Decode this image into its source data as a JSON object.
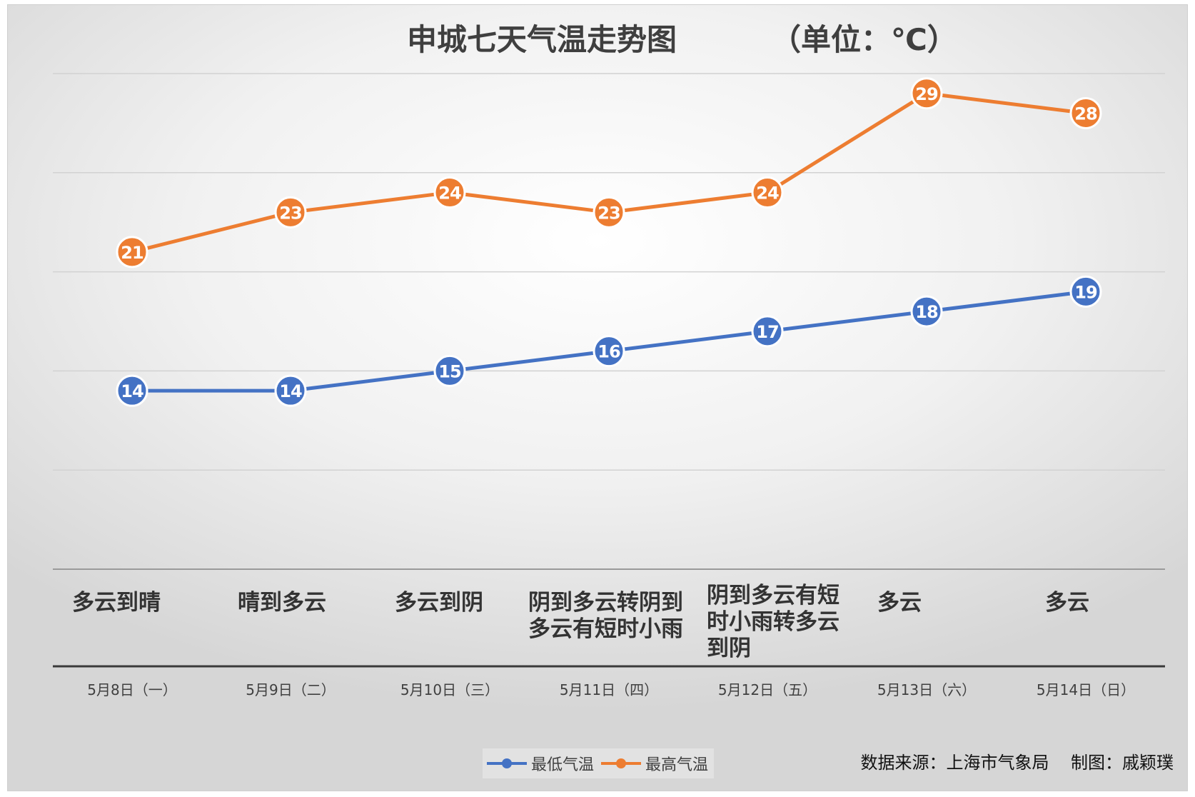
{
  "chart_data": {
    "type": "line",
    "title": "申城七天气温走势图",
    "unit": "（单位：℃）",
    "categories": [
      "5月8日（一）",
      "5月9日（二）",
      "5月10日（三）",
      "5月11日（四）",
      "5月12日（五）",
      "5月13日（六）",
      "5月14日（日）"
    ],
    "series": [
      {
        "name": "最低气温",
        "color": "#4472C4",
        "values": [
          14,
          14,
          15,
          16,
          17,
          18,
          19
        ]
      },
      {
        "name": "最高气温",
        "color": "#ED7D31",
        "values": [
          21,
          23,
          24,
          23,
          24,
          29,
          28
        ]
      }
    ],
    "weather": [
      "多云到晴",
      "晴到多云",
      "多云到阴",
      "阴到多云转阴到\n多云有短时小雨",
      "阴到多云有短\n时小雨转多云\n到阴",
      "多云",
      "多云"
    ],
    "ylim": [
      5,
      30
    ],
    "grid": true,
    "data_labels": true,
    "legend_position": "bottom"
  },
  "footer": {
    "source": "数据来源：上海市气象局",
    "author": "制图：戚颖璞"
  },
  "colors": {
    "low": "#4472C4",
    "high": "#ED7D31",
    "grid": "#d0d0d0",
    "text": "#3f3f3f"
  }
}
